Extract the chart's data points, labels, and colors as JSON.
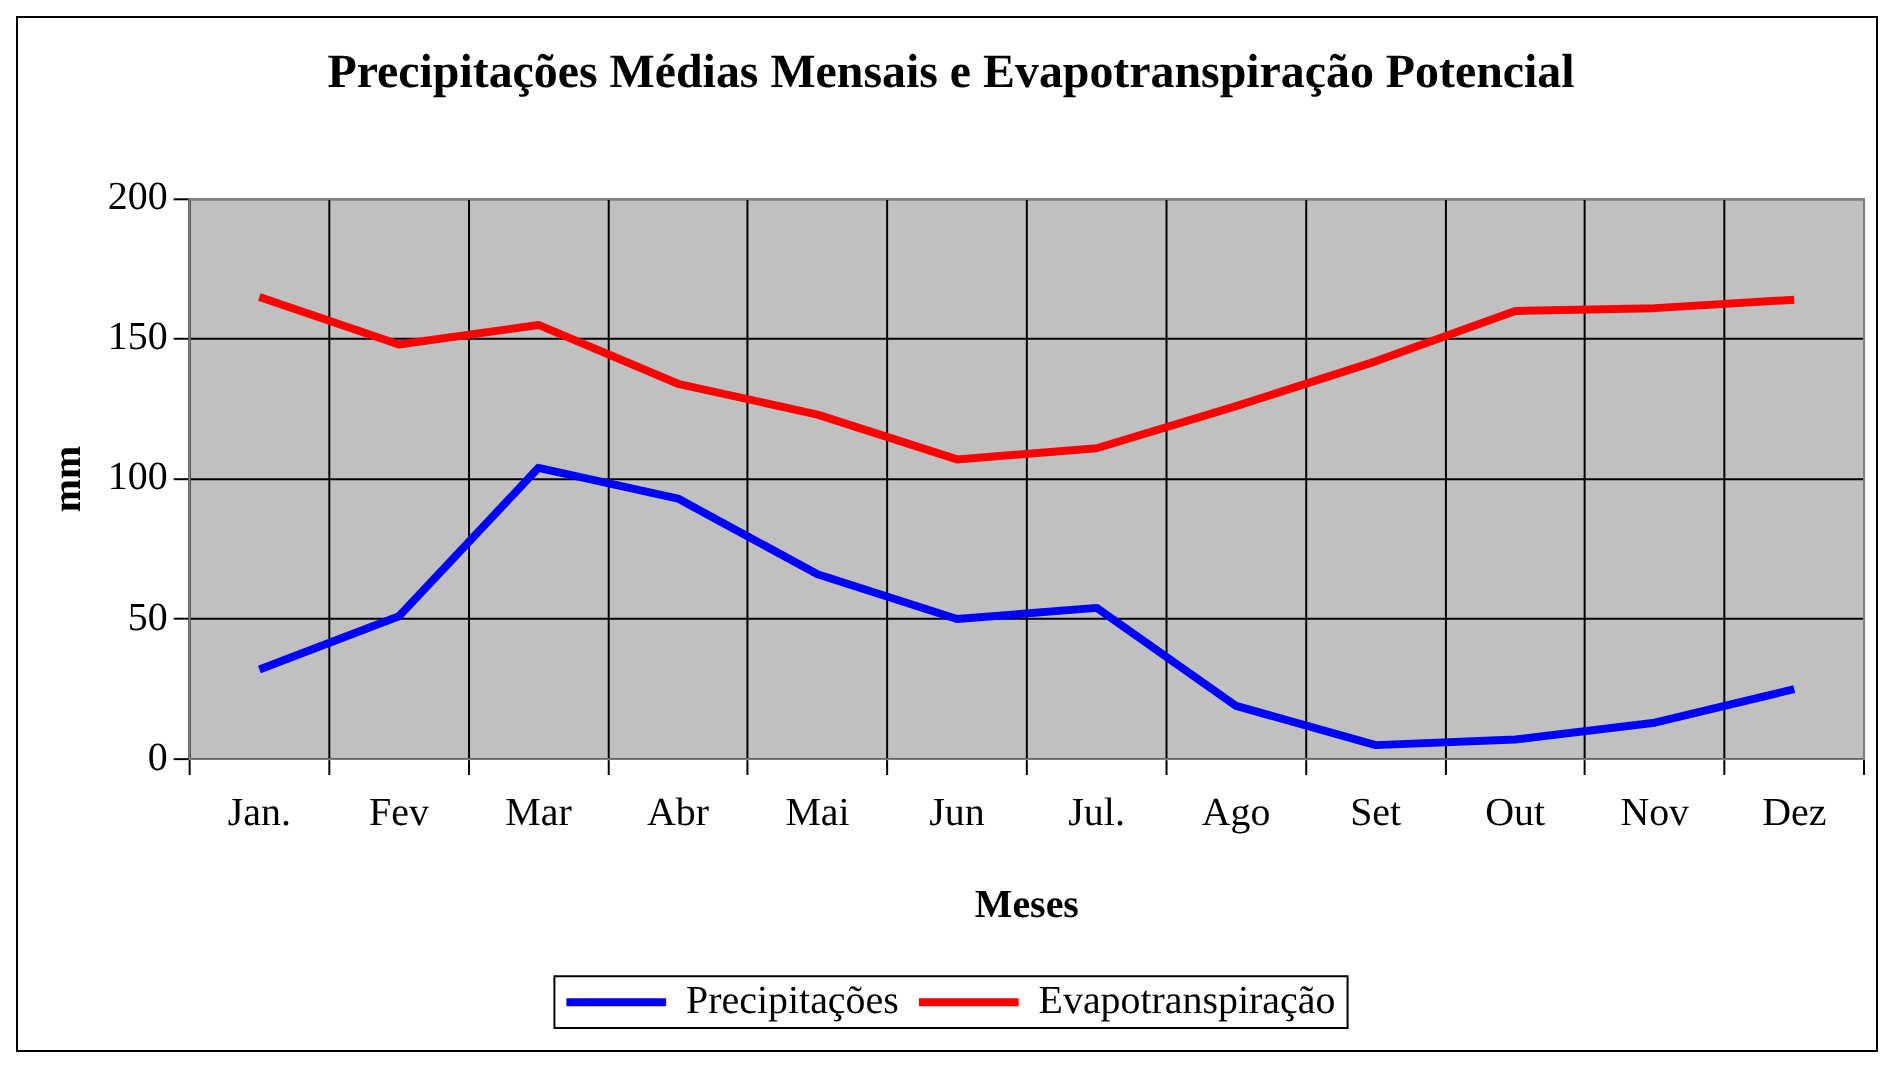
{
  "chart_data": {
    "type": "line",
    "title": "Precipitações Médias Mensais e Evapotranspiração Potencial",
    "xlabel": "Meses",
    "ylabel": "mm",
    "categories": [
      "Jan.",
      "Fev",
      "Mar",
      "Abr",
      "Mai",
      "Jun",
      "Jul.",
      "Ago",
      "Set",
      "Out",
      "Nov",
      "Dez"
    ],
    "series": [
      {
        "name": "Precipitações",
        "color": "#0000ff",
        "values": [
          32,
          51,
          104,
          93,
          66,
          50,
          54,
          19,
          5,
          7,
          13,
          25
        ]
      },
      {
        "name": "Evapotranspiração",
        "color": "#ff0000",
        "values": [
          165,
          148,
          155,
          134,
          123,
          107,
          111,
          126,
          142,
          160,
          161,
          164
        ]
      }
    ],
    "ylim": [
      0,
      200
    ],
    "yticks": [
      0,
      50,
      100,
      150,
      200
    ],
    "grid": true,
    "legend": "bottom",
    "marker": "none",
    "line_style": "solid"
  }
}
